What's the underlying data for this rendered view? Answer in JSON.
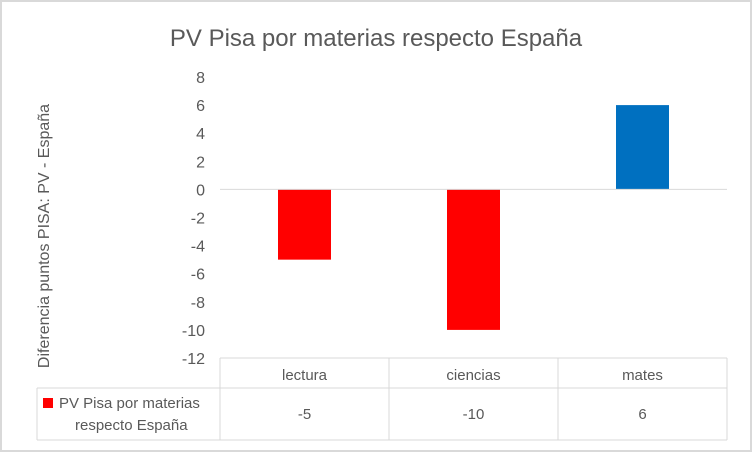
{
  "chart_data": {
    "type": "bar",
    "title": "PV Pisa por materias respecto España",
    "ylabel": "Diferencia puntos PISA: PV -  España",
    "xlabel": "",
    "categories": [
      "lectura",
      "ciencias",
      "mates"
    ],
    "series": [
      {
        "name": "PV Pisa por materias respecto España",
        "values": [
          -5,
          -10,
          6
        ],
        "legend_line1": "PV Pisa por materias",
        "legend_line2": "respecto España",
        "legend_color": "#ff0000"
      }
    ],
    "value_labels": [
      "-5",
      "-10",
      "6"
    ],
    "bar_colors": [
      "#ff0000",
      "#ff0000",
      "#0070c0"
    ],
    "ylim": [
      -12,
      8
    ],
    "yticks": [
      8,
      6,
      4,
      2,
      0,
      -2,
      -4,
      -6,
      -8,
      -10,
      -12
    ],
    "grid": false,
    "legend": "data-table"
  }
}
